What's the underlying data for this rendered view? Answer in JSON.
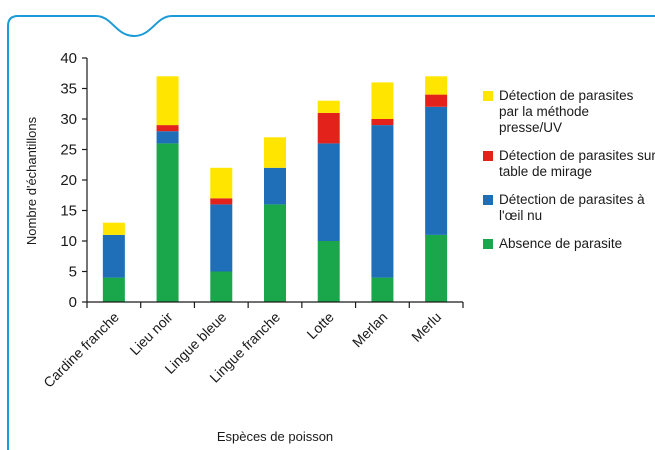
{
  "chart_data": {
    "type": "bar",
    "stacked": true,
    "categories": [
      "Cardine franche",
      "Lieu noir",
      "Lingue bleue",
      "Lingue franche",
      "Lotte",
      "Merlan",
      "Merlu"
    ],
    "series": [
      {
        "name": "Absence de parasite",
        "color": "#1aa64a",
        "values": [
          4,
          26,
          5,
          16,
          10,
          4,
          11
        ]
      },
      {
        "name": "Détection de parasites à l'œil nu",
        "color": "#1f6fb8",
        "values": [
          7,
          2,
          11,
          6,
          16,
          25,
          21
        ]
      },
      {
        "name": "Détection de parasites sur table de mirage",
        "color": "#e3231b",
        "values": [
          0,
          1,
          1,
          0,
          5,
          1,
          2
        ]
      },
      {
        "name": "Détection de parasites par la méthode presse/UV",
        "color": "#ffe500",
        "values": [
          2,
          8,
          5,
          5,
          2,
          6,
          3
        ]
      }
    ],
    "xlabel": "Espèces de poisson",
    "ylabel": "Nombre d'échantillons",
    "ylim": [
      0,
      40
    ],
    "yticks": [
      0,
      5,
      10,
      15,
      20,
      25,
      30,
      35,
      40
    ],
    "grid": false,
    "legend_position": "right"
  },
  "legend": [
    {
      "text": "Détection de parasites par la méthode presse/UV",
      "color": "#ffe500"
    },
    {
      "text": "Détection de parasites sur table de mirage",
      "color": "#e3231b"
    },
    {
      "text": "Détection de parasites à l'œil nu",
      "color": "#1f6fb8"
    },
    {
      "text": "Absence de parasite",
      "color": "#1aa64a"
    }
  ],
  "frame_color": "#1a9ad6"
}
